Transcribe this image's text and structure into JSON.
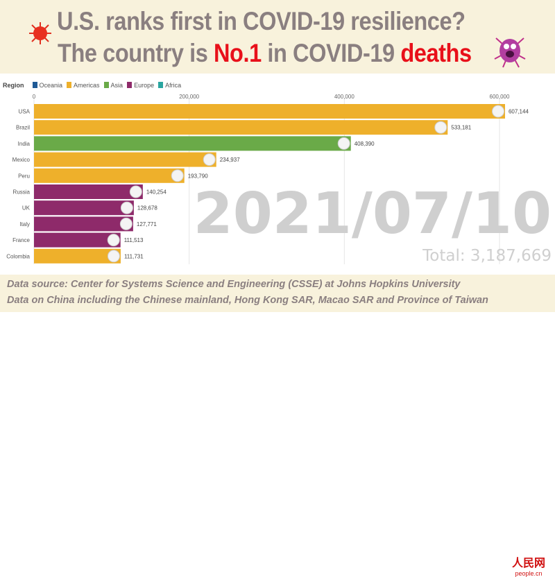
{
  "header": {
    "line1": "U.S. ranks first in COVID-19 resilience?",
    "line2_a": "The country is ",
    "line2_b": "No.1",
    "line2_c": " in  COVID-19 ",
    "line2_d": "deaths"
  },
  "legend": {
    "title": "Region",
    "items": [
      {
        "label": "Oceania",
        "color": "#1f5a96"
      },
      {
        "label": "Americas",
        "color": "#eeb02b"
      },
      {
        "label": "Asia",
        "color": "#6aaa48"
      },
      {
        "label": "Europe",
        "color": "#8e2a6a"
      },
      {
        "label": "Africa",
        "color": "#2aa5a0"
      }
    ]
  },
  "chart_data": {
    "type": "bar",
    "orientation": "horizontal",
    "xlim": [
      0,
      620000
    ],
    "xticks": [
      0,
      200000,
      400000,
      600000
    ],
    "xtick_labels": [
      "0",
      "200,000",
      "400,000",
      "600,000"
    ],
    "categories": [
      "USA",
      "Brazil",
      "India",
      "Mexico",
      "Peru",
      "Russia",
      "UK",
      "Italy",
      "France",
      "Colombia"
    ],
    "values": [
      607144,
      533181,
      408390,
      234937,
      193790,
      140254,
      128678,
      127771,
      111513,
      111731
    ],
    "value_labels": [
      "607,144",
      "533,181",
      "408,390",
      "234,937",
      "193,790",
      "140,254",
      "128,678",
      "127,771",
      "111,513",
      "111,731"
    ],
    "regions": [
      "Americas",
      "Americas",
      "Asia",
      "Americas",
      "Americas",
      "Europe",
      "Europe",
      "Europe",
      "Europe",
      "Americas"
    ],
    "date": "2021/07/10",
    "total": "Total: 3,187,669"
  },
  "footer": {
    "line1": "Data source: Center for Systems Science and Engineering (CSSE) at Johns Hopkins University",
    "line2": "Data on China including the Chinese mainland, Hong Kong SAR, Macao SAR and Province of Taiwan"
  },
  "logo": {
    "cn": "人民网",
    "en": "people.cn"
  }
}
